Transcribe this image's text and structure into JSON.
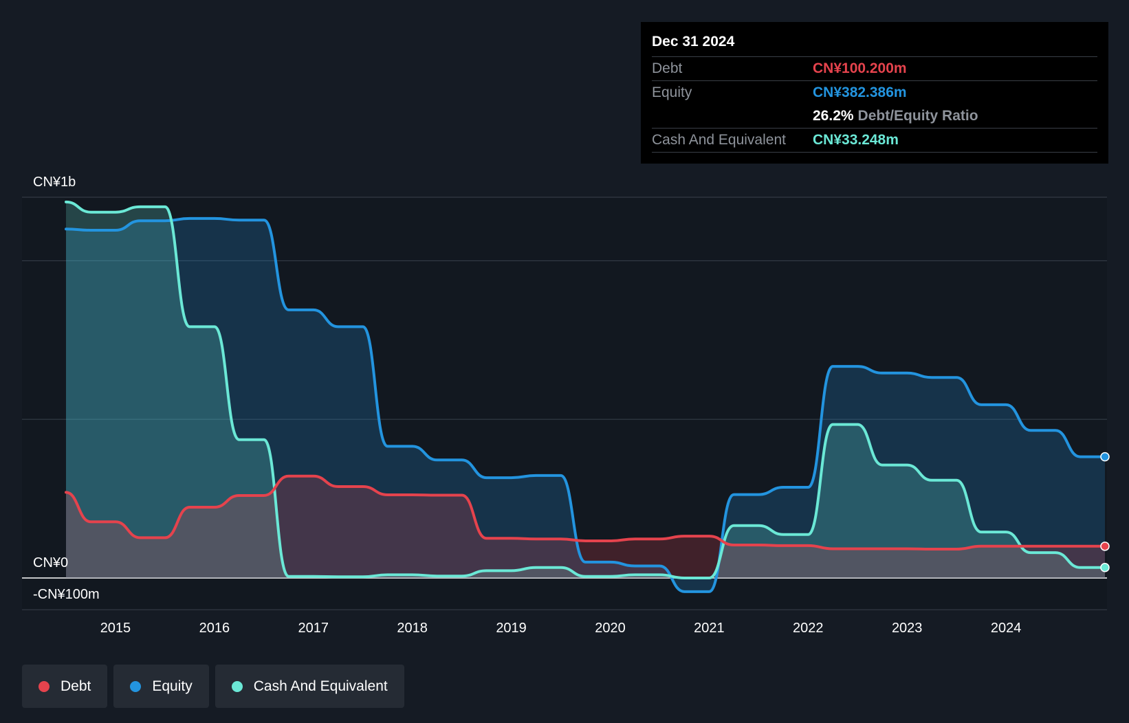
{
  "colors": {
    "debt": "#e5434d",
    "equity": "#2394df",
    "cash": "#6be8d6"
  },
  "tooltip": {
    "date": "Dec 31 2024",
    "debt_label": "Debt",
    "debt_value": "CN¥100.200m",
    "equity_label": "Equity",
    "equity_value": "CN¥382.386m",
    "ratio_value": "26.2%",
    "ratio_label": "Debt/Equity Ratio",
    "cash_label": "Cash And Equivalent",
    "cash_value": "CN¥33.248m"
  },
  "legend": {
    "debt": "Debt",
    "equity": "Equity",
    "cash": "Cash And Equivalent"
  },
  "chart_data": {
    "type": "area",
    "title": "",
    "xlabel": "",
    "ylabel": "",
    "y_tick_labels": [
      {
        "value": 1200,
        "label": "CN¥1b"
      },
      {
        "value": 0,
        "label": "CN¥0"
      },
      {
        "value": -100,
        "label": "-CN¥100m"
      }
    ],
    "x_ticks": [
      {
        "value": 2015,
        "label": "2015"
      },
      {
        "value": 2016,
        "label": "2016"
      },
      {
        "value": 2017,
        "label": "2017"
      },
      {
        "value": 2018,
        "label": "2018"
      },
      {
        "value": 2019,
        "label": "2019"
      },
      {
        "value": 2020,
        "label": "2020"
      },
      {
        "value": 2021,
        "label": "2021"
      },
      {
        "value": 2022,
        "label": "2022"
      },
      {
        "value": 2023,
        "label": "2023"
      },
      {
        "value": 2024,
        "label": "2024"
      }
    ],
    "xlim": [
      2014.5,
      2025.0
    ],
    "ylim": [
      -100,
      1200
    ],
    "gridlines": [
      1200,
      1000,
      500,
      0,
      -100
    ],
    "legend_position": "bottom-left",
    "series": [
      {
        "name": "Debt",
        "x": [
          2014.5,
          2014.75,
          2015.0,
          2015.25,
          2015.5,
          2015.75,
          2016.0,
          2016.25,
          2016.5,
          2016.75,
          2017.0,
          2017.25,
          2017.5,
          2017.75,
          2018.0,
          2018.25,
          2018.5,
          2018.75,
          2019.0,
          2019.25,
          2019.5,
          2019.75,
          2020.0,
          2020.25,
          2020.5,
          2020.75,
          2021.0,
          2021.25,
          2021.5,
          2021.75,
          2022.0,
          2022.25,
          2022.5,
          2022.75,
          2023.0,
          2023.25,
          2023.5,
          2023.75,
          2024.0,
          2024.25,
          2024.5,
          2024.75,
          2025.0
        ],
        "values": [
          270,
          177,
          177,
          127,
          127,
          223,
          223,
          260,
          260,
          321,
          321,
          288,
          288,
          262,
          262,
          261,
          261,
          125,
          125,
          123,
          123,
          117,
          117,
          123,
          123,
          132,
          132,
          104,
          104,
          102,
          102,
          92,
          92,
          92,
          92,
          91,
          91,
          100,
          100,
          100,
          100,
          100,
          100
        ]
      },
      {
        "name": "Equity",
        "x": [
          2014.5,
          2014.75,
          2015.0,
          2015.25,
          2015.5,
          2015.75,
          2016.0,
          2016.25,
          2016.5,
          2016.75,
          2017.0,
          2017.25,
          2017.5,
          2017.75,
          2018.0,
          2018.25,
          2018.5,
          2018.75,
          2019.0,
          2019.25,
          2019.5,
          2019.75,
          2020.0,
          2020.25,
          2020.5,
          2020.75,
          2021.0,
          2021.25,
          2021.5,
          2021.75,
          2022.0,
          2022.25,
          2022.5,
          2022.75,
          2023.0,
          2023.25,
          2023.5,
          2023.75,
          2024.0,
          2024.25,
          2024.5,
          2024.75,
          2025.0
        ],
        "values": [
          1100,
          1096,
          1096,
          1126,
          1126,
          1133,
          1133,
          1128,
          1128,
          845,
          845,
          792,
          792,
          415,
          415,
          372,
          372,
          316,
          316,
          323,
          323,
          50,
          50,
          38,
          38,
          -43,
          -43,
          263,
          263,
          286,
          286,
          667,
          667,
          646,
          646,
          632,
          632,
          546,
          546,
          465,
          465,
          382,
          382
        ]
      },
      {
        "name": "Cash And Equivalent",
        "x": [
          2014.5,
          2014.75,
          2015.0,
          2015.25,
          2015.5,
          2015.75,
          2016.0,
          2016.25,
          2016.5,
          2016.75,
          2017.0,
          2017.25,
          2017.5,
          2017.75,
          2018.0,
          2018.25,
          2018.5,
          2018.75,
          2019.0,
          2019.25,
          2019.5,
          2019.75,
          2020.0,
          2020.25,
          2020.5,
          2020.75,
          2021.0,
          2021.25,
          2021.5,
          2021.75,
          2022.0,
          2022.25,
          2022.5,
          2022.75,
          2023.0,
          2023.25,
          2023.5,
          2023.75,
          2024.0,
          2024.25,
          2024.5,
          2024.75,
          2025.0
        ],
        "values": [
          1185,
          1153,
          1153,
          1170,
          1170,
          792,
          792,
          436,
          436,
          5,
          5,
          4,
          4,
          10,
          10,
          6,
          6,
          23,
          23,
          33,
          33,
          5,
          5,
          10,
          10,
          0,
          0,
          165,
          165,
          137,
          137,
          484,
          484,
          356,
          356,
          308,
          308,
          145,
          145,
          80,
          80,
          33,
          33
        ]
      }
    ]
  }
}
